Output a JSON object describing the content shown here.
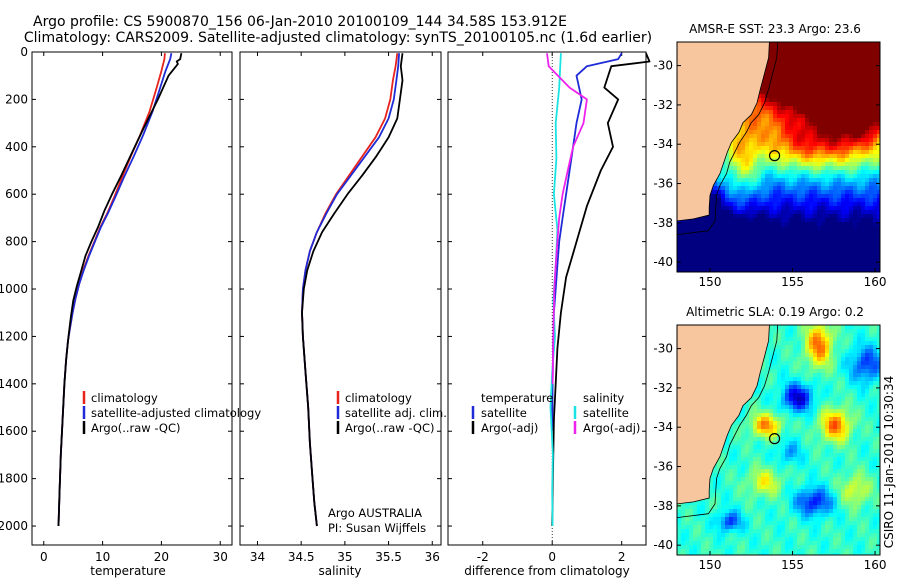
{
  "header": {
    "line1": "Argo profile: CS 5900870_156 06-Jan-2010 20100109_144 34.58S 153.912E",
    "line2": "Climatology: CARS2009. Satellite-adjusted climatology: synTS_20100105.nc (1.6d earlier)"
  },
  "credit": "CSIRO 11-Jan-2010 10:30:34",
  "colors": {
    "climatology": "#e8231d",
    "satellite": "#1f2bd6",
    "argo": "#000000",
    "satellite_sal": "#19e3e3",
    "argo_sal": "#ee22ee",
    "land": "#f7c69f"
  },
  "chart_data": [
    {
      "type": "line",
      "id": "temperature",
      "xlabel": "temperature",
      "xlim": [
        -2,
        32
      ],
      "xticks": [
        "0",
        "10",
        "20",
        "30"
      ],
      "xtick_values": [
        0,
        10,
        20,
        30
      ],
      "ylim": [
        2080,
        0
      ],
      "yticks": [
        "0",
        "200",
        "400",
        "600",
        "800",
        "1000",
        "1200",
        "1400",
        "1600",
        "1800",
        "2000"
      ],
      "ytick_values": [
        0,
        200,
        400,
        600,
        800,
        1000,
        1200,
        1400,
        1600,
        1800,
        2000
      ],
      "legend": [
        "climatology",
        "satellite-adjusted climatology",
        "Argo(..raw -QC)"
      ],
      "series": [
        {
          "name": "climatology",
          "color": "#e8231d",
          "width": 1.8,
          "x": [
            20.6,
            20.5,
            20.0,
            19.2,
            18.0,
            16.4,
            14.8,
            13.3,
            12.0,
            10.8,
            9.6,
            8.6,
            7.6,
            6.7,
            6.0,
            5.4,
            4.9,
            4.5,
            4.1,
            3.8,
            3.5,
            3.2,
            2.9,
            2.7,
            2.5
          ],
          "y": [
            5,
            30,
            80,
            150,
            250,
            350,
            440,
            530,
            610,
            680,
            740,
            800,
            860,
            920,
            980,
            1040,
            1100,
            1160,
            1220,
            1300,
            1400,
            1550,
            1700,
            1850,
            2000
          ]
        },
        {
          "name": "satellite-adjusted climatology",
          "color": "#1f2bd6",
          "width": 1.8,
          "x": [
            21.7,
            21.5,
            20.7,
            19.8,
            18.5,
            16.9,
            15.3,
            13.6,
            12.2,
            10.9,
            9.7,
            8.7,
            7.7,
            6.8,
            6.0,
            5.4,
            4.9,
            4.5,
            4.1,
            3.8,
            3.5,
            3.2,
            2.9,
            2.7,
            2.5
          ],
          "y": [
            5,
            30,
            80,
            150,
            250,
            350,
            440,
            530,
            610,
            680,
            740,
            800,
            860,
            920,
            980,
            1040,
            1100,
            1160,
            1220,
            1300,
            1400,
            1550,
            1700,
            1850,
            2000
          ]
        },
        {
          "name": "Argo(..raw -QC)",
          "color": "#000000",
          "width": 1.8,
          "x": [
            23.4,
            23.2,
            22.6,
            22.8,
            21.2,
            19.4,
            17.0,
            14.9,
            13.2,
            11.6,
            10.3,
            9.2,
            8.1,
            7.1,
            6.3,
            5.6,
            5.0,
            4.6,
            4.2,
            3.8,
            3.5,
            3.2,
            2.9,
            2.7,
            2.5
          ],
          "y": [
            5,
            30,
            40,
            50,
            100,
            200,
            320,
            430,
            520,
            600,
            670,
            740,
            800,
            860,
            930,
            990,
            1050,
            1120,
            1200,
            1300,
            1400,
            1550,
            1700,
            1850,
            2000
          ]
        }
      ]
    },
    {
      "type": "line",
      "id": "salinity",
      "xlabel": "salinity",
      "xlim": [
        33.8,
        36.1
      ],
      "xticks": [
        "34",
        "34.5",
        "35",
        "35.5",
        "36"
      ],
      "xtick_values": [
        34,
        34.5,
        35,
        35.5,
        36
      ],
      "ylim": [
        2080,
        0
      ],
      "legend": [
        "climatology",
        "satellite adj. clim.",
        "Argo(..raw -QC)"
      ],
      "annotation": [
        "Argo AUSTRALIA",
        "PI: Susan Wijffels"
      ],
      "series": [
        {
          "name": "climatology",
          "color": "#e8231d",
          "width": 1.8,
          "x": [
            35.6,
            35.58,
            35.55,
            35.52,
            35.46,
            35.35,
            35.2,
            35.05,
            34.9,
            34.78,
            34.68,
            34.6,
            34.55,
            34.52,
            34.51,
            34.52,
            34.55,
            34.58,
            34.6,
            34.63,
            34.65,
            34.68
          ],
          "y": [
            5,
            60,
            120,
            200,
            280,
            360,
            440,
            520,
            600,
            680,
            760,
            840,
            920,
            1000,
            1100,
            1200,
            1350,
            1500,
            1650,
            1800,
            1900,
            2000
          ]
        },
        {
          "name": "satellite adj. clim.",
          "color": "#1f2bd6",
          "width": 1.8,
          "x": [
            35.62,
            35.61,
            35.59,
            35.56,
            35.5,
            35.39,
            35.23,
            35.07,
            34.91,
            34.79,
            34.68,
            34.6,
            34.55,
            34.52,
            34.51,
            34.52,
            34.55,
            34.58,
            34.6,
            34.63,
            34.65,
            34.68
          ],
          "y": [
            5,
            60,
            120,
            200,
            280,
            360,
            440,
            520,
            600,
            680,
            760,
            840,
            920,
            1000,
            1100,
            1200,
            1350,
            1500,
            1650,
            1800,
            1900,
            2000
          ]
        },
        {
          "name": "Argo(..raw -QC)",
          "color": "#000000",
          "width": 1.8,
          "x": [
            35.66,
            35.64,
            35.66,
            35.63,
            35.6,
            35.5,
            35.36,
            35.2,
            35.03,
            34.88,
            34.74,
            34.64,
            34.57,
            34.53,
            34.51,
            34.52,
            34.55,
            34.58,
            34.6,
            34.63,
            34.65,
            34.68
          ],
          "y": [
            5,
            60,
            120,
            200,
            280,
            360,
            440,
            520,
            600,
            680,
            760,
            840,
            920,
            1000,
            1100,
            1200,
            1350,
            1500,
            1650,
            1800,
            1900,
            2000
          ]
        }
      ]
    },
    {
      "type": "line",
      "id": "difference",
      "xlabel": "difference from climatology",
      "xlim": [
        -3,
        2.7
      ],
      "xticks": [
        "-2",
        "0",
        "2"
      ],
      "xtick_values": [
        -2,
        0,
        2
      ],
      "ylim": [
        2080,
        0
      ],
      "legend_temperature": {
        "title": "temperature",
        "entries": [
          "satellite",
          "Argo(-adj)"
        ]
      },
      "legend_salinity": {
        "title": "salinity",
        "entries": [
          "satellite",
          "Argo(-adj)"
        ]
      },
      "series": [
        {
          "name": "temperature satellite",
          "color": "#1f2bd6",
          "width": 1.8,
          "x": [
            2.0,
            1.9,
            1.0,
            0.7,
            0.85,
            0.7,
            0.6,
            0.5,
            0.4,
            0.3,
            0.2,
            0.15,
            0.1,
            0.05,
            0.03,
            0.01,
            0.0
          ],
          "y": [
            5,
            30,
            60,
            100,
            200,
            300,
            400,
            500,
            600,
            700,
            800,
            900,
            1000,
            1100,
            1200,
            1400,
            1600
          ]
        },
        {
          "name": "temperature Argo(-adj)",
          "color": "#000000",
          "width": 1.8,
          "x": [
            2.7,
            2.8,
            1.7,
            1.5,
            1.9,
            1.6,
            1.75,
            1.4,
            1.0,
            0.8,
            0.6,
            0.4,
            0.25,
            0.15,
            0.1,
            0.05,
            0.03,
            0.01,
            0.0
          ],
          "y": [
            5,
            40,
            60,
            150,
            200,
            300,
            400,
            500,
            650,
            750,
            850,
            950,
            1100,
            1250,
            1400,
            1550,
            1700,
            1850,
            2000
          ]
        },
        {
          "name": "salinity satellite",
          "color": "#19e3e3",
          "width": 1.8,
          "x": [
            0.25,
            0.2,
            0.1,
            0.12,
            0.05,
            0.15,
            0.1,
            0.03,
            0.08,
            0.0,
            -0.05,
            0.02,
            0.0,
            0.01
          ],
          "y": [
            5,
            150,
            300,
            450,
            600,
            750,
            900,
            1050,
            1200,
            1350,
            1500,
            1700,
            1850,
            2000
          ]
        },
        {
          "name": "salinity Argo(-adj)",
          "color": "#ee22ee",
          "width": 1.8,
          "x": [
            -0.15,
            -0.1,
            0.5,
            1.0,
            0.9,
            0.6,
            0.45,
            0.3,
            0.2,
            0.15,
            0.1,
            0.06,
            0.03,
            0.01
          ],
          "y": [
            5,
            60,
            150,
            200,
            300,
            400,
            500,
            600,
            700,
            800,
            900,
            1000,
            1200,
            1400
          ]
        }
      ]
    },
    {
      "type": "heatmap",
      "id": "sst-map",
      "title": "AMSR-E SST: 23.3 Argo: 23.6",
      "xlim": [
        148,
        160.3
      ],
      "ylim": [
        -40.5,
        -28.8
      ],
      "xticks": [
        "150",
        "155",
        "160"
      ],
      "xtick_values": [
        150,
        155,
        160
      ],
      "yticks": [
        "-30",
        "-32",
        "-34",
        "-36",
        "-38",
        "-40"
      ],
      "ytick_values": [
        -30,
        -32,
        -34,
        -36,
        -38,
        -40
      ],
      "marker": {
        "lon": 153.912,
        "lat": -34.58
      },
      "fields": [
        {
          "lon": 157.0,
          "lat": -30.5,
          "sx": 2.6,
          "sy": 1.8,
          "amp": 2.2
        },
        {
          "lon": 159.0,
          "lat": -31.8,
          "sx": 2.0,
          "sy": 2.4,
          "amp": 1.4
        },
        {
          "lon": 154.5,
          "lat": -29.5,
          "sx": 2.0,
          "sy": 1.5,
          "amp": 1.2
        },
        {
          "lon": 156.0,
          "lat": -34.0,
          "sx": 2.8,
          "sy": 1.3,
          "amp": 0.9
        },
        {
          "lon": 152.0,
          "lat": -35.0,
          "sx": 1.0,
          "sy": 1.8,
          "amp": 0.6
        },
        {
          "lon": 151.2,
          "lat": -39.2,
          "sx": 1.5,
          "sy": 1.1,
          "amp": -1.3
        },
        {
          "lon": 150.0,
          "lat": -36.8,
          "sx": 0.8,
          "sy": 0.7,
          "amp": -0.5
        }
      ],
      "base": {
        "a": 0.45,
        "lat_grad": 0.13
      }
    },
    {
      "type": "heatmap",
      "id": "sla-map",
      "title": "Altimetric SLA: 0.19 Argo: 0.2",
      "xlim": [
        148,
        160.3
      ],
      "ylim": [
        -40.5,
        -28.8
      ],
      "xticks": [
        "150",
        "155",
        "160"
      ],
      "xtick_values": [
        150,
        155,
        160
      ],
      "yticks": [
        "-30",
        "-32",
        "-34",
        "-36",
        "-38",
        "-40"
      ],
      "ytick_values": [
        -30,
        -32,
        -34,
        -36,
        -38,
        -40
      ],
      "marker": {
        "lon": 153.912,
        "lat": -34.58
      },
      "fields": [
        {
          "lon": 156.6,
          "lat": -29.8,
          "sx": 0.8,
          "sy": 1.1,
          "amp": 1.0
        },
        {
          "lon": 155.3,
          "lat": -32.5,
          "sx": 0.9,
          "sy": 0.7,
          "amp": -1.0
        },
        {
          "lon": 153.4,
          "lat": -33.9,
          "sx": 0.9,
          "sy": 0.6,
          "amp": 0.9
        },
        {
          "lon": 157.6,
          "lat": -33.9,
          "sx": 0.9,
          "sy": 0.8,
          "amp": 1.0
        },
        {
          "lon": 159.5,
          "lat": -30.8,
          "sx": 1.0,
          "sy": 0.9,
          "amp": -0.7
        },
        {
          "lon": 156.3,
          "lat": -37.8,
          "sx": 1.1,
          "sy": 0.7,
          "amp": -0.8
        },
        {
          "lon": 151.2,
          "lat": -38.8,
          "sx": 0.7,
          "sy": 0.5,
          "amp": -0.7
        },
        {
          "lon": 153.3,
          "lat": -36.8,
          "sx": 1.0,
          "sy": 0.7,
          "amp": 0.55
        },
        {
          "lon": 158.8,
          "lat": -37.2,
          "sx": 0.9,
          "sy": 0.8,
          "amp": 0.5
        },
        {
          "lon": 154.8,
          "lat": -35.3,
          "sx": 0.7,
          "sy": 0.6,
          "amp": -0.4
        }
      ],
      "base": {
        "a": 0.42,
        "lat_grad": 0.0
      }
    }
  ]
}
